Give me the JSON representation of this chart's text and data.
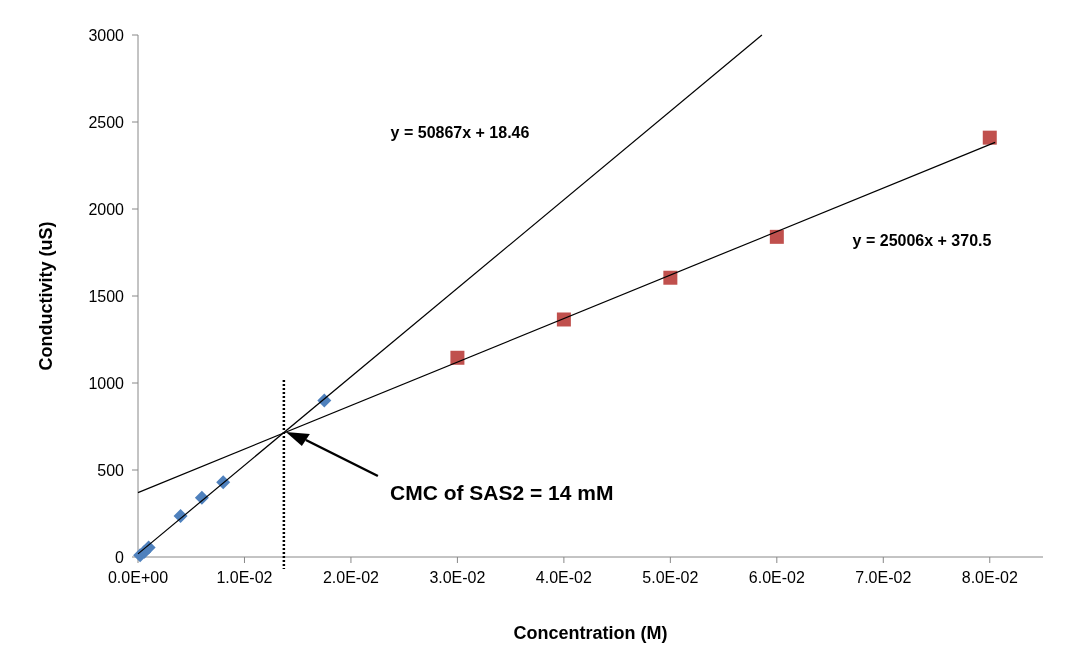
{
  "chart_data": {
    "type": "scatter",
    "xlabel": "Concentration (M)",
    "ylabel": "Conductivity (uS)",
    "xlim": [
      0,
      0.085
    ],
    "ylim": [
      0,
      3000
    ],
    "xticks": [
      {
        "value": 0,
        "label": "0.0E+00"
      },
      {
        "value": 0.01,
        "label": "1.0E-02"
      },
      {
        "value": 0.02,
        "label": "2.0E-02"
      },
      {
        "value": 0.03,
        "label": "3.0E-02"
      },
      {
        "value": 0.04,
        "label": "4.0E-02"
      },
      {
        "value": 0.05,
        "label": "5.0E-02"
      },
      {
        "value": 0.06,
        "label": "6.0E-02"
      },
      {
        "value": 0.07,
        "label": "7.0E-02"
      },
      {
        "value": 0.08,
        "label": "8.0E-02"
      }
    ],
    "yticks": [
      0,
      500,
      1000,
      1500,
      2000,
      2500,
      3000
    ],
    "grid": false,
    "series": [
      {
        "type": "scatter",
        "marker": "diamond",
        "color": "#4f81bd",
        "x": [
          0.0002,
          0.0006,
          0.001,
          0.004,
          0.006,
          0.008,
          0.0175
        ],
        "values": [
          10,
          30,
          55,
          235,
          340,
          430,
          900
        ]
      },
      {
        "type": "scatter",
        "marker": "square",
        "color": "#c0504d",
        "x": [
          0.03,
          0.04,
          0.05,
          0.06,
          0.08
        ],
        "values": [
          1145,
          1365,
          1605,
          1840,
          2410
        ]
      },
      {
        "type": "line",
        "marker": "none",
        "color": "#000000",
        "x": [
          0,
          0.0586
        ],
        "values": [
          18,
          3000
        ]
      },
      {
        "type": "line",
        "marker": "none",
        "color": "#000000",
        "x": [
          0,
          0.0805
        ],
        "values": [
          370,
          2383
        ]
      }
    ],
    "ref_lines": [
      {
        "axis": "x",
        "value": 0.0137,
        "color": "#000000",
        "line_style": "dotted"
      }
    ],
    "annotations": [
      "y = 50867x + 18.46",
      "y = 25006x + 370.5",
      "CMC of SAS2 = 14 mM"
    ]
  }
}
